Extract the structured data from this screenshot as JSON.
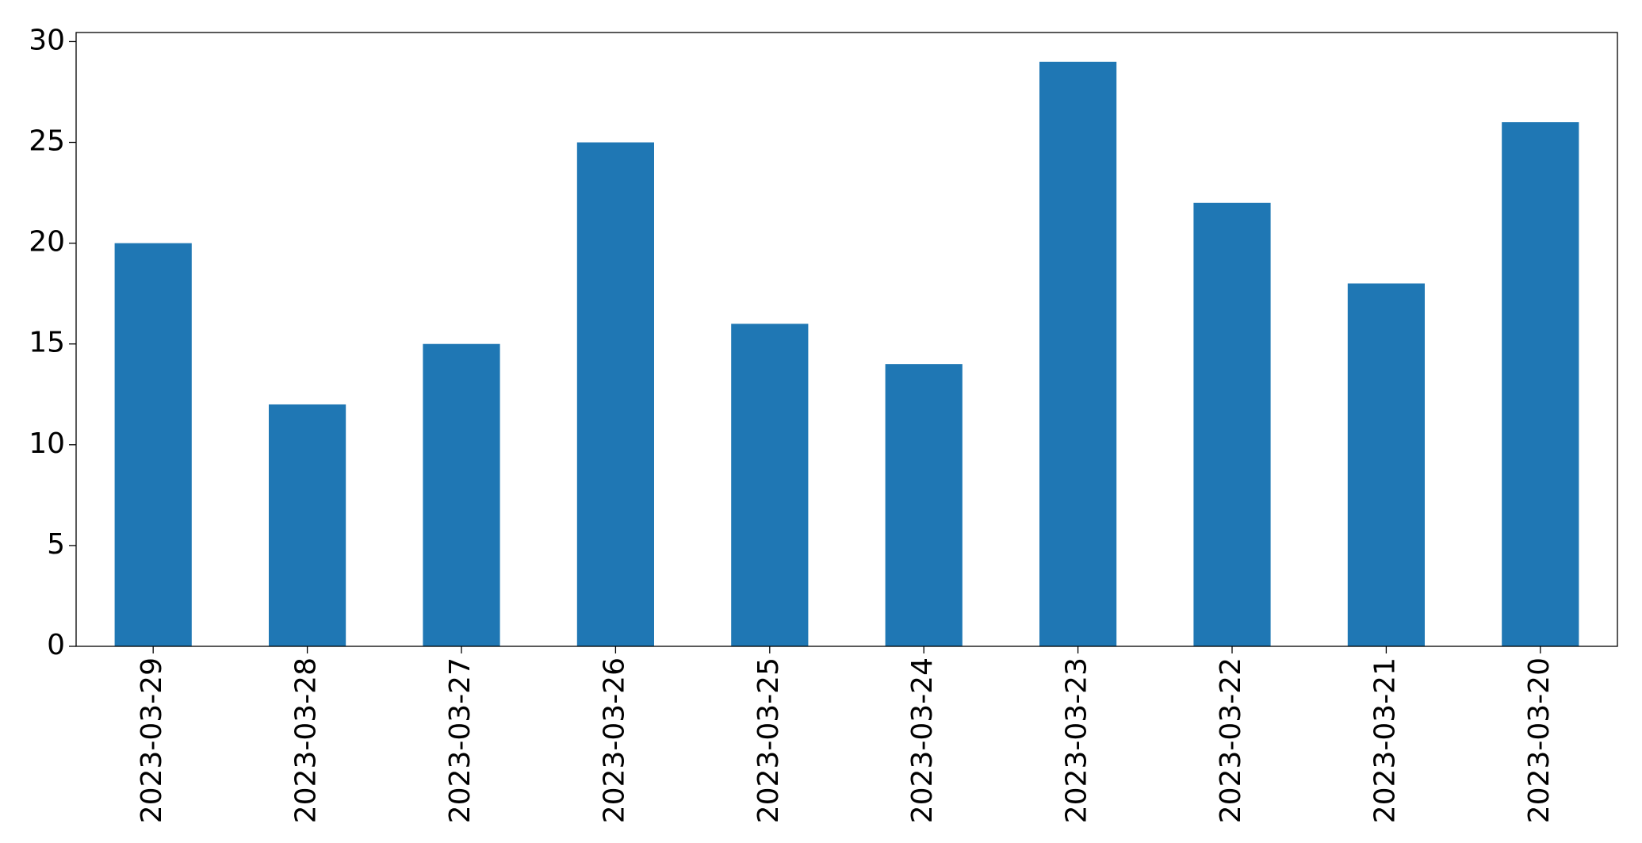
{
  "chart_data": {
    "type": "bar",
    "categories": [
      "2023-03-29",
      "2023-03-28",
      "2023-03-27",
      "2023-03-26",
      "2023-03-25",
      "2023-03-24",
      "2023-03-23",
      "2023-03-22",
      "2023-03-21",
      "2023-03-20"
    ],
    "values": [
      20,
      12,
      15,
      25,
      16,
      14,
      29,
      22,
      18,
      26
    ],
    "color": "#1f77b4",
    "ylim": [
      0,
      30.45
    ],
    "yticks": [
      0,
      5,
      10,
      15,
      20,
      25,
      30
    ],
    "grid": false
  }
}
